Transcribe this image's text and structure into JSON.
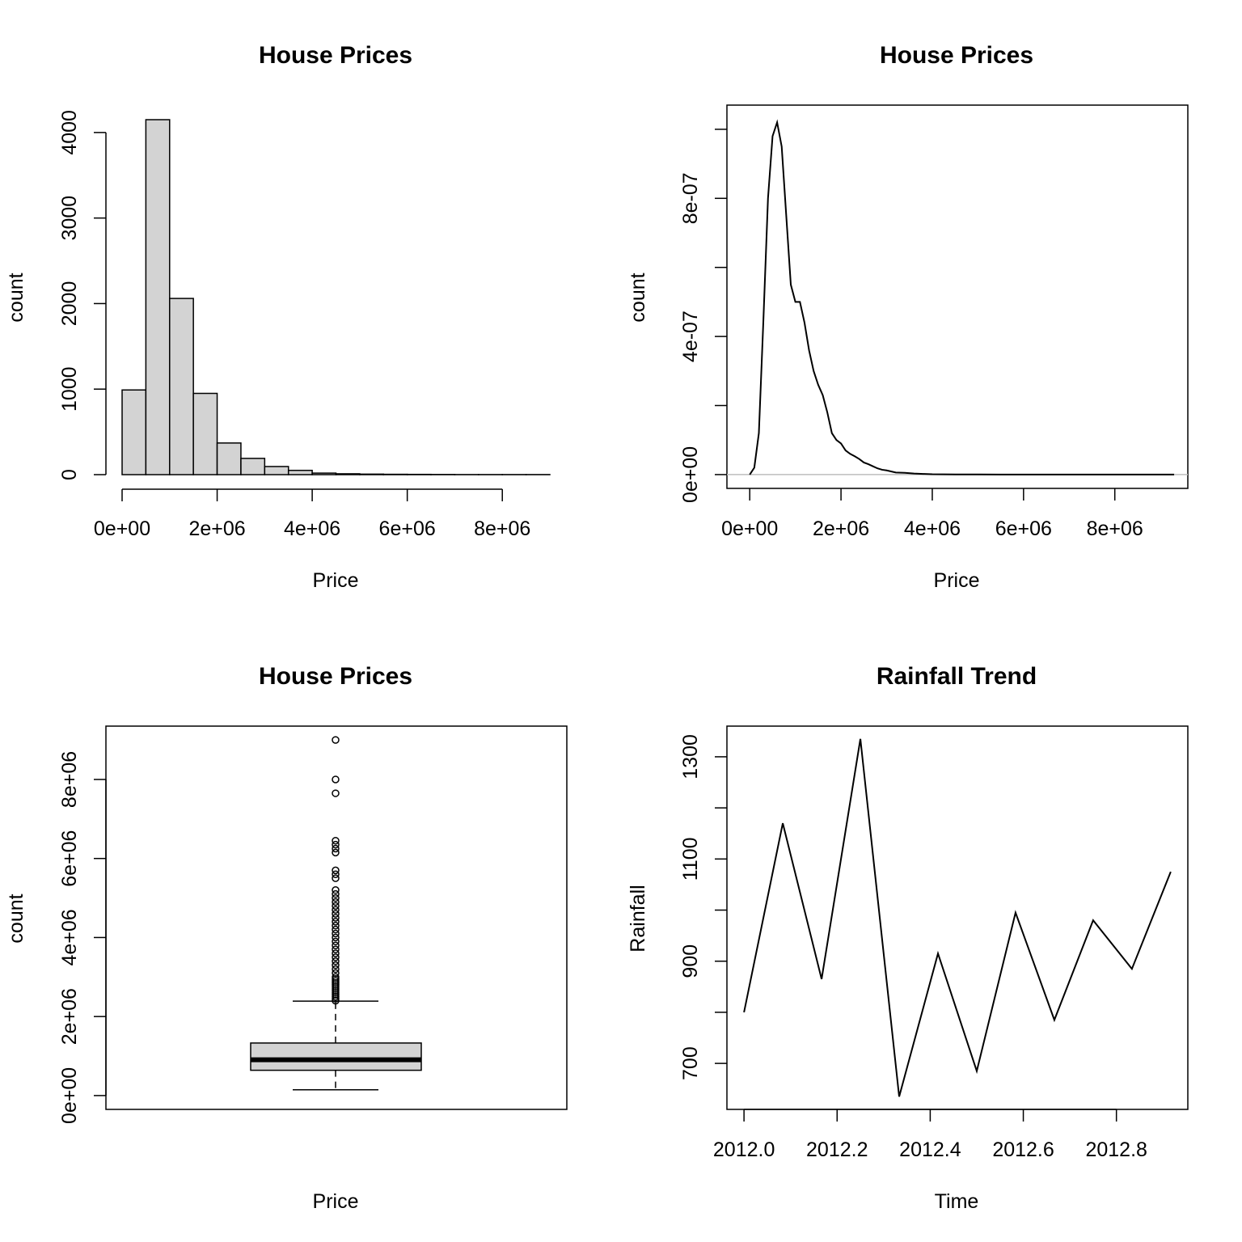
{
  "chart_data": [
    {
      "type": "bar",
      "chart": "histogram",
      "title": "House Prices",
      "xlabel": "Price",
      "ylabel": "count",
      "bin_edges": [
        0,
        500000,
        1000000,
        1500000,
        2000000,
        2500000,
        3000000,
        3500000,
        4000000,
        4500000,
        5000000,
        5500000,
        6000000,
        6500000,
        7000000,
        7500000,
        8000000,
        8500000,
        9000000
      ],
      "values": [
        990,
        4150,
        2060,
        950,
        370,
        190,
        95,
        50,
        18,
        10,
        6,
        4,
        3,
        2,
        1,
        1,
        1,
        1
      ],
      "xlim": [
        0,
        9000000
      ],
      "ylim": [
        0,
        4150
      ],
      "x_ticks": [
        0,
        2000000,
        4000000,
        6000000,
        8000000
      ],
      "x_tick_labels": [
        "0e+00",
        "2e+06",
        "4e+06",
        "6e+06",
        "8e+06"
      ],
      "y_ticks": [
        0,
        1000,
        2000,
        3000,
        4000
      ],
      "y_tick_labels": [
        "0",
        "1000",
        "2000",
        "3000",
        "4000"
      ],
      "fill": "#d3d3d3"
    },
    {
      "type": "line",
      "chart": "density",
      "title": "House Prices",
      "xlabel": "Price",
      "ylabel": "count",
      "x": [
        0,
        100000,
        200000,
        300000,
        400000,
        500000,
        600000,
        700000,
        800000,
        900000,
        1000000,
        1100000,
        1200000,
        1300000,
        1400000,
        1500000,
        1600000,
        1700000,
        1800000,
        1900000,
        2000000,
        2100000,
        2200000,
        2300000,
        2400000,
        2500000,
        2600000,
        2700000,
        2800000,
        2900000,
        3000000,
        3200000,
        3400000,
        3600000,
        3800000,
        4000000,
        4500000,
        5000000,
        5500000,
        6000000,
        7000000,
        8000000,
        9300000
      ],
      "y": [
        0.0,
        2e-08,
        1.2e-07,
        4.5e-07,
        8e-07,
        9.8e-07,
        1.02e-06,
        9.5e-07,
        7.5e-07,
        5.5e-07,
        5e-07,
        5e-07,
        4.4e-07,
        3.6e-07,
        3e-07,
        2.6e-07,
        2.3e-07,
        1.8e-07,
        1.2e-07,
        1e-07,
        9e-08,
        7e-08,
        6e-08,
        5.3e-08,
        4.5e-08,
        3.5e-08,
        3e-08,
        2.4e-08,
        1.8e-08,
        1.4e-08,
        1.2e-08,
        6e-09,
        5e-09,
        3e-09,
        2e-09,
        1e-09,
        5e-10,
        3e-10,
        2e-10,
        1e-10,
        0,
        0,
        0
      ],
      "xlim": [
        -500000,
        9600000
      ],
      "ylim": [
        -4e-08,
        1.07e-06
      ],
      "x_ticks": [
        0,
        2000000,
        4000000,
        6000000,
        8000000
      ],
      "x_tick_labels": [
        "0e+00",
        "2e+06",
        "4e+06",
        "6e+06",
        "8e+06"
      ],
      "y_ticks": [
        0,
        2e-07,
        4e-07,
        6e-07,
        8e-07,
        1e-06
      ],
      "y_tick_labels": [
        "0e+00",
        "",
        "4e-07",
        "",
        "8e-07",
        ""
      ],
      "baseline_color": "#bebebe"
    },
    {
      "type": "boxplot",
      "title": "House Prices",
      "xlabel": "Price",
      "ylabel": "count",
      "min_whisker": 145000,
      "q1": 640000,
      "median": 905000,
      "q3": 1330000,
      "max_whisker": 2390000,
      "outliers": [
        9000000,
        8000000,
        7650000,
        6450000,
        6350000,
        6250000,
        6150000,
        5700000,
        5600000,
        5500000,
        5200000,
        5100000,
        5000000,
        4900000,
        4800000,
        4700000,
        4600000,
        4500000,
        4400000,
        4300000,
        4200000,
        4100000,
        4000000,
        3900000,
        3800000,
        3700000,
        3600000,
        3500000,
        3400000,
        3300000,
        3200000,
        3100000,
        3000000,
        2950000,
        2900000,
        2850000,
        2800000,
        2750000,
        2700000,
        2650000,
        2600000,
        2550000,
        2500000,
        2450000,
        2400000
      ],
      "ylim": [
        -350000,
        9350000
      ],
      "y_ticks": [
        0,
        2000000,
        4000000,
        6000000,
        8000000
      ],
      "y_tick_labels": [
        "0e+00",
        "2e+06",
        "4e+06",
        "6e+06",
        "8e+06"
      ],
      "fill": "#d3d3d3"
    },
    {
      "type": "line",
      "title": "Rainfall Trend",
      "xlabel": "Time",
      "ylabel": "Rainfall",
      "x": [
        2012.0,
        2012.0833,
        2012.1667,
        2012.25,
        2012.3333,
        2012.4167,
        2012.5,
        2012.5833,
        2012.6667,
        2012.75,
        2012.8333,
        2012.9167
      ],
      "y": [
        800,
        1170,
        865,
        1335,
        635,
        915,
        685,
        995,
        785,
        980,
        885,
        1075
      ],
      "xlim": [
        2011.9633,
        2012.9534
      ],
      "ylim": [
        610,
        1360
      ],
      "x_ticks": [
        2012.0,
        2012.2,
        2012.4,
        2012.6,
        2012.8
      ],
      "x_tick_labels": [
        "2012.0",
        "2012.2",
        "2012.4",
        "2012.6",
        "2012.8"
      ],
      "y_ticks": [
        700,
        800,
        900,
        1000,
        1100,
        1200,
        1300
      ],
      "y_tick_labels": [
        "700",
        "",
        "900",
        "",
        "1100",
        "",
        "1300"
      ]
    }
  ]
}
